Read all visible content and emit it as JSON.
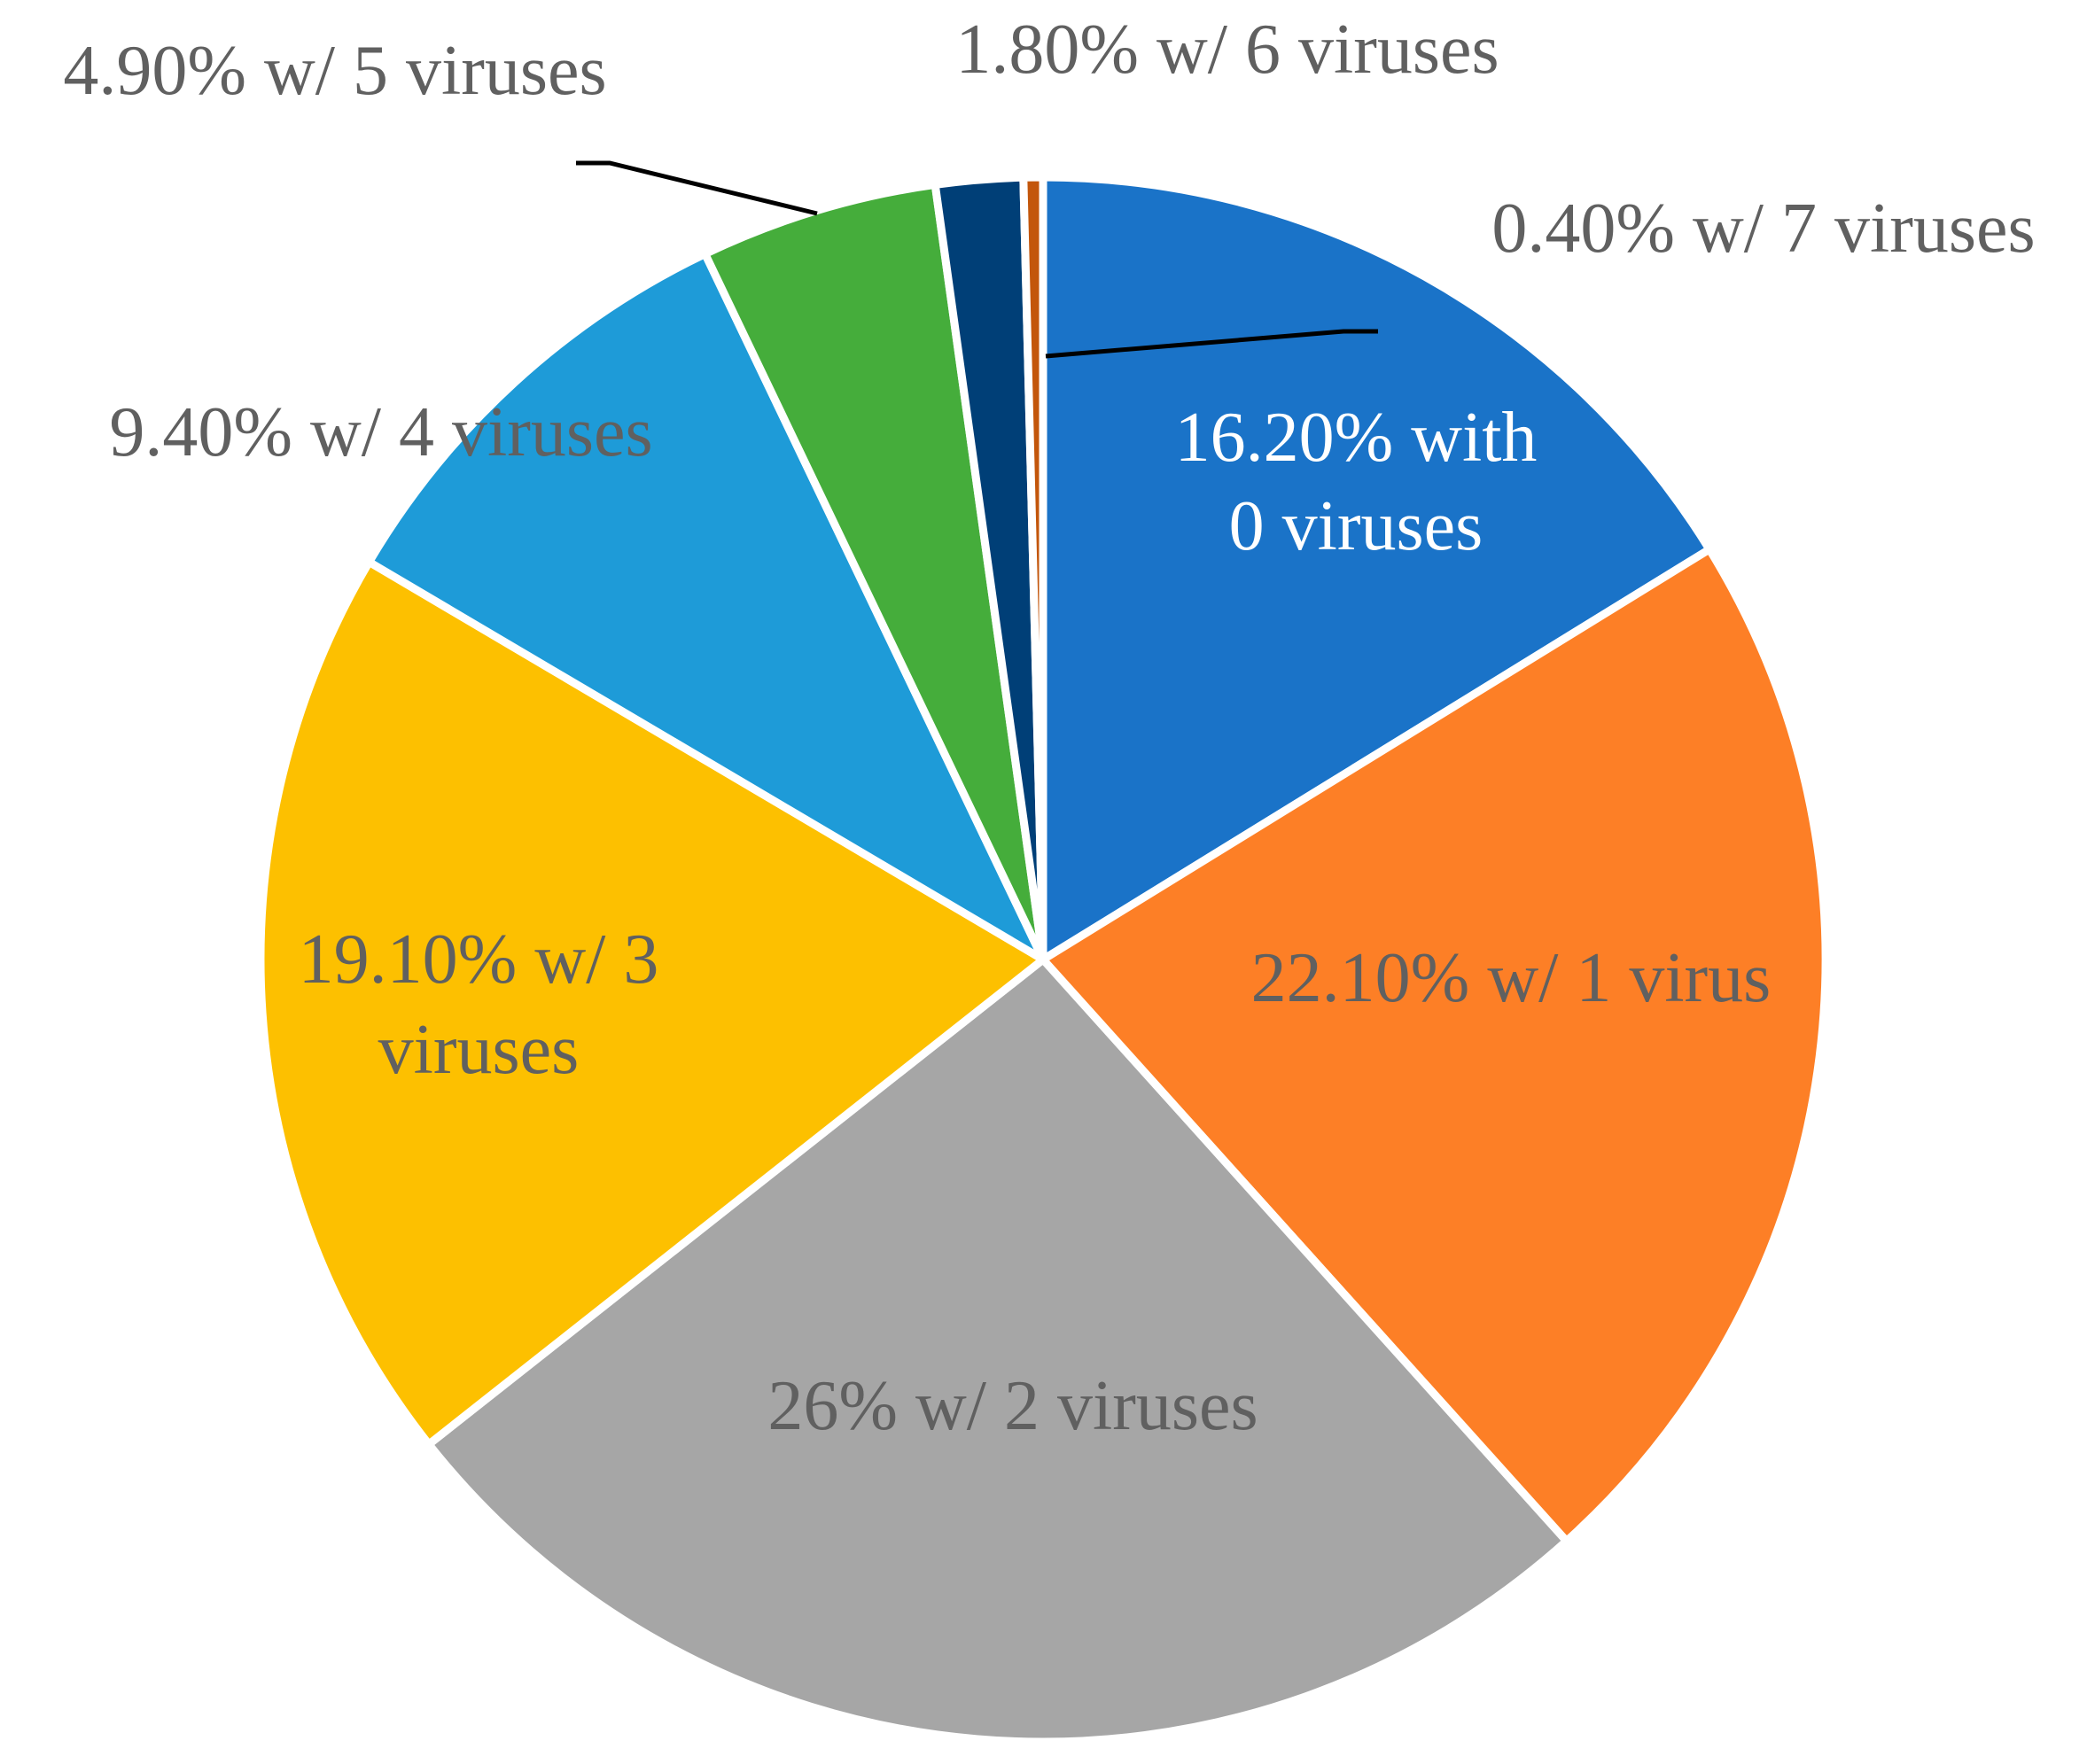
{
  "chart_data": {
    "type": "pie",
    "title": "",
    "slices": [
      {
        "label_lines": [
          "16.20% with",
          "0 viruses"
        ],
        "value": 16.2,
        "color": "#1a73c8",
        "label_color": "#ffffff"
      },
      {
        "label_lines": [
          "22.10% w/ 1 virus"
        ],
        "value": 22.1,
        "color": "#fd7f26",
        "label_color": "#606060"
      },
      {
        "label_lines": [
          "26% w/ 2 viruses"
        ],
        "value": 26.0,
        "color": "#a6a6a6",
        "label_color": "#606060"
      },
      {
        "label_lines": [
          "19.10% w/ 3",
          "viruses"
        ],
        "value": 19.1,
        "color": "#fdc000",
        "label_color": "#606060"
      },
      {
        "label_lines": [
          "9.40% w/ 4 viruses"
        ],
        "value": 9.4,
        "color": "#1e9bd8",
        "label_color": "#606060"
      },
      {
        "label_lines": [
          "4.90% w/ 5 viruses"
        ],
        "value": 4.9,
        "color": "#45ad3b",
        "label_color": "#606060"
      },
      {
        "label_lines": [
          "1.80% w/ 6 viruses"
        ],
        "value": 1.8,
        "color": "#003f77",
        "label_color": "#606060"
      },
      {
        "label_lines": [
          "0.40% w/ 7 viruses"
        ],
        "value": 0.4,
        "color": "#c3560b",
        "label_color": "#606060"
      }
    ],
    "start_angle": "12 o'clock",
    "direction": "clockwise",
    "legend": "none",
    "label_line_color": "#000000"
  }
}
